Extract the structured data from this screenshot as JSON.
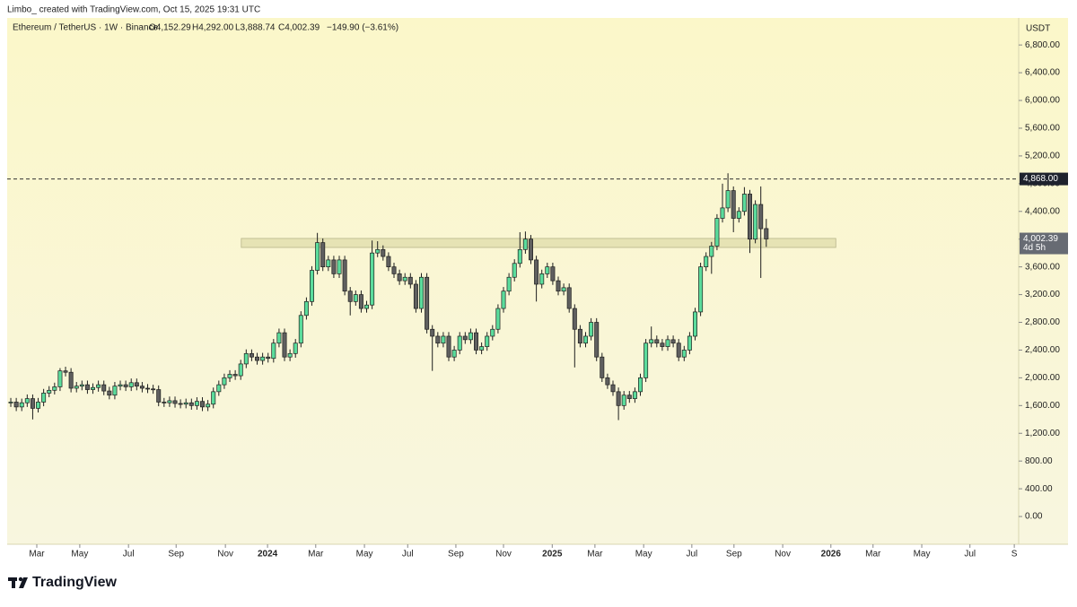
{
  "header": "Limbo_ created with TradingView.com, Oct 15, 2025 19:31 UTC",
  "footer": "TradingView",
  "chart_data": {
    "type": "candlestick",
    "legend": {
      "symbol": "Ethereum / TetherUS · 1W · Binance",
      "open": "O4,152.29",
      "high": "H4,292.00",
      "low": "L3,888.74",
      "close": "C4,002.39",
      "change": "−149.90 (−3.61%)"
    },
    "y_unit": "USDT",
    "up_color": "#5bdc9c",
    "down_color": "#5f5f5f",
    "outline_color": "#1e1e1e",
    "open": [
      1640,
      1650,
      1580,
      1640,
      1700,
      1560,
      1650,
      1780,
      1820,
      1870,
      2100,
      2080,
      1850,
      1880,
      1900,
      1830,
      1860,
      1900,
      1810,
      1750,
      1880,
      1900,
      1870,
      1930,
      1880,
      1850,
      1840,
      1830,
      1650,
      1640,
      1670,
      1630,
      1620,
      1640,
      1600,
      1660,
      1580,
      1620,
      1800,
      1900,
      2000,
      2050,
      2030,
      2200,
      2350,
      2300,
      2250,
      2300,
      2280,
      2500,
      2650,
      2300,
      2350,
      2500,
      2900,
      3100,
      3550,
      3950,
      3600,
      3700,
      3500,
      3700,
      3250,
      3100,
      3200,
      3000,
      3050,
      3800,
      3850,
      3750,
      3600,
      3500,
      3400,
      3450,
      3350,
      3000,
      3450,
      2700,
      2600,
      2500,
      2600,
      2300,
      2400,
      2600,
      2550,
      2650,
      2400,
      2450,
      2600,
      2700,
      3000,
      3250,
      3450,
      3650,
      3850,
      4000,
      3700,
      3350,
      3500,
      3600,
      3400,
      3250,
      3300,
      3000,
      2700,
      2500,
      2600,
      2800,
      2300,
      2000,
      1900,
      1800,
      1600,
      1750,
      1700,
      1800,
      2000,
      2500,
      2550,
      2500,
      2450,
      2550,
      2500,
      2300,
      2400,
      2600,
      2950,
      3600,
      3750,
      3900,
      4300,
      4450,
      4700,
      4300,
      4400,
      4650,
      4000,
      4500,
      4152.29
    ],
    "high": [
      1710,
      1710,
      1700,
      1760,
      1760,
      1710,
      1840,
      1880,
      1930,
      2140,
      2160,
      2140,
      1940,
      1960,
      1960,
      1920,
      1960,
      1960,
      1870,
      1940,
      1960,
      1960,
      1990,
      1990,
      1940,
      1910,
      1900,
      1890,
      1710,
      1730,
      1730,
      1690,
      1700,
      1700,
      1720,
      1720,
      1680,
      1860,
      1960,
      2060,
      2110,
      2110,
      2260,
      2410,
      2410,
      2360,
      2360,
      2360,
      2560,
      2710,
      2710,
      2410,
      2560,
      2960,
      3160,
      3610,
      4090,
      4010,
      3760,
      3760,
      3760,
      3760,
      3310,
      3260,
      3260,
      3110,
      3980,
      3970,
      3910,
      3810,
      3660,
      3560,
      3510,
      3510,
      3410,
      3510,
      3510,
      2760,
      2660,
      2660,
      2660,
      2460,
      2660,
      2660,
      2710,
      2710,
      2510,
      2660,
      2760,
      3060,
      3310,
      3510,
      3710,
      4100,
      4110,
      4060,
      3760,
      3560,
      3660,
      3660,
      3460,
      3360,
      3360,
      3060,
      2760,
      2660,
      2860,
      2860,
      2360,
      2060,
      1960,
      1860,
      1810,
      1810,
      1860,
      2060,
      2560,
      2740,
      2610,
      2560,
      2610,
      2610,
      2560,
      2460,
      2660,
      3010,
      3660,
      3810,
      3960,
      4360,
      4800,
      4950,
      4760,
      4460,
      4750,
      4710,
      4560,
      4760,
      4292
    ],
    "low": [
      1580,
      1520,
      1520,
      1580,
      1400,
      1500,
      1590,
      1720,
      1760,
      1810,
      2020,
      1790,
      1790,
      1820,
      1770,
      1770,
      1800,
      1750,
      1690,
      1690,
      1820,
      1810,
      1810,
      1820,
      1790,
      1780,
      1770,
      1590,
      1580,
      1580,
      1570,
      1560,
      1560,
      1540,
      1540,
      1520,
      1520,
      1560,
      1740,
      1840,
      1940,
      1970,
      1970,
      2140,
      2240,
      2190,
      2190,
      2220,
      2220,
      2440,
      2240,
      2240,
      2290,
      2440,
      2840,
      3040,
      3490,
      3540,
      3540,
      3440,
      3440,
      3190,
      2900,
      3040,
      2940,
      2940,
      2990,
      3740,
      3690,
      3540,
      3440,
      3340,
      3340,
      3290,
      2940,
      2940,
      2640,
      2100,
      2440,
      2440,
      2240,
      2240,
      2340,
      2490,
      2490,
      2340,
      2340,
      2390,
      2540,
      2640,
      2940,
      3190,
      3390,
      3590,
      3790,
      3640,
      3100,
      3290,
      3440,
      3340,
      3190,
      3190,
      2940,
      2150,
      2440,
      2440,
      2540,
      2240,
      1940,
      1840,
      1740,
      1390,
      1540,
      1640,
      1640,
      1740,
      1940,
      2440,
      2440,
      2390,
      2390,
      2440,
      2240,
      2240,
      2340,
      2540,
      2890,
      3540,
      3500,
      3840,
      4240,
      4390,
      4100,
      4240,
      4340,
      3800,
      3940,
      3440,
      3888.74
    ],
    "close": [
      1650,
      1580,
      1640,
      1700,
      1560,
      1650,
      1780,
      1820,
      1870,
      2100,
      2080,
      1850,
      1880,
      1900,
      1830,
      1860,
      1900,
      1810,
      1750,
      1880,
      1900,
      1870,
      1930,
      1880,
      1850,
      1840,
      1830,
      1650,
      1640,
      1670,
      1630,
      1620,
      1640,
      1600,
      1660,
      1580,
      1620,
      1800,
      1900,
      2000,
      2050,
      2030,
      2200,
      2350,
      2300,
      2250,
      2300,
      2280,
      2500,
      2650,
      2300,
      2350,
      2500,
      2900,
      3100,
      3550,
      3950,
      3600,
      3700,
      3500,
      3700,
      3250,
      3100,
      3200,
      3000,
      3050,
      3800,
      3850,
      3750,
      3600,
      3500,
      3400,
      3450,
      3350,
      3000,
      3450,
      2700,
      2600,
      2500,
      2600,
      2300,
      2400,
      2600,
      2550,
      2650,
      2400,
      2450,
      2600,
      2700,
      3000,
      3250,
      3450,
      3650,
      3850,
      4000,
      3700,
      3350,
      3500,
      3600,
      3400,
      3250,
      3300,
      3000,
      2700,
      2500,
      2600,
      2800,
      2300,
      2000,
      1900,
      1800,
      1600,
      1750,
      1700,
      1800,
      2000,
      2500,
      2550,
      2500,
      2450,
      2550,
      2500,
      2300,
      2400,
      2600,
      2950,
      3600,
      3750,
      3900,
      4300,
      4450,
      4700,
      4300,
      4400,
      4650,
      4000,
      4500,
      4150,
      4002.39
    ],
    "xlim": [
      -0.66,
      184.1
    ],
    "xticks": [
      {
        "value": 4.75,
        "label": "Mar"
      },
      {
        "value": 12.6,
        "label": "May"
      },
      {
        "value": 21.5,
        "label": "Jul"
      },
      {
        "value": 30.2,
        "label": "Sep"
      },
      {
        "value": 39.2,
        "label": "Nov"
      },
      {
        "value": 46.9,
        "label": "2024"
      },
      {
        "value": 55.7,
        "label": "Mar"
      },
      {
        "value": 64.6,
        "label": "May"
      },
      {
        "value": 72.5,
        "label": "Jul"
      },
      {
        "value": 81.3,
        "label": "Sep"
      },
      {
        "value": 90,
        "label": "Nov"
      },
      {
        "value": 98.9,
        "label": "2025"
      },
      {
        "value": 106.7,
        "label": "Mar"
      },
      {
        "value": 115.6,
        "label": "May"
      },
      {
        "value": 124.4,
        "label": "Jul"
      },
      {
        "value": 132.1,
        "label": "Sep"
      },
      {
        "value": 141,
        "label": "Nov"
      },
      {
        "value": 149.8,
        "label": "2026"
      },
      {
        "value": 157.5,
        "label": "Mar"
      },
      {
        "value": 166.4,
        "label": "May"
      },
      {
        "value": 175.2,
        "label": "Jul"
      },
      {
        "value": 183.3,
        "label": "S"
      }
    ],
    "ylim": [
      -400,
      7190
    ],
    "yticks": [
      {
        "value": 0,
        "label": "0.00"
      },
      {
        "value": 400,
        "label": "400.00"
      },
      {
        "value": 800,
        "label": "800.00"
      },
      {
        "value": 1200,
        "label": "1,200.00"
      },
      {
        "value": 1600,
        "label": "1,600.00"
      },
      {
        "value": 2000,
        "label": "2,000.00"
      },
      {
        "value": 2400,
        "label": "2,400.00"
      },
      {
        "value": 2800,
        "label": "2,800.00"
      },
      {
        "value": 3200,
        "label": "3,200.00"
      },
      {
        "value": 3600,
        "label": "3,600.00"
      },
      {
        "value": 4000,
        "label": "4,000.00"
      },
      {
        "value": 4400,
        "label": "4,400.00"
      },
      {
        "value": 4800,
        "label": "4,800.00"
      },
      {
        "value": 5200,
        "label": "5,200.00"
      },
      {
        "value": 5600,
        "label": "5,600.00"
      },
      {
        "value": 6000,
        "label": "6,000.00"
      },
      {
        "value": 6400,
        "label": "6,400.00"
      },
      {
        "value": 6800,
        "label": "6,800.00"
      }
    ],
    "zone": {
      "x": [
        42.1,
        150.7
      ],
      "y": [
        3880,
        4010
      ],
      "color": "#e6e3b4"
    },
    "hline": {
      "value": 4868,
      "label": "4,868.00"
    },
    "last_price": {
      "value": 4002.39,
      "label": "4,002.39",
      "countdown": "4d 5h"
    }
  }
}
